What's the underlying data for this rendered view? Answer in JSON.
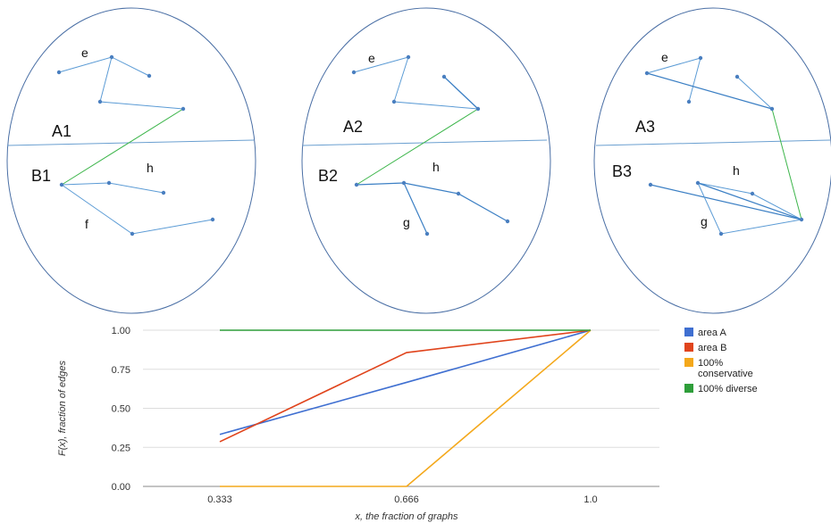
{
  "diagrams": [
    {
      "label_top": "A1",
      "label_bottom": "B1",
      "edge_labels": [
        "e",
        "h",
        "f"
      ]
    },
    {
      "label_top": "A2",
      "label_bottom": "B2",
      "edge_labels": [
        "e",
        "h",
        "g"
      ]
    },
    {
      "label_top": "A3",
      "label_bottom": "B3",
      "edge_labels": [
        "e",
        "h",
        "g"
      ]
    }
  ],
  "colors": {
    "ellipse": "#4a6fa5",
    "edge": "#5b9bd5",
    "cross_edge": "#3cb54a",
    "area_a": "#3f6fd1",
    "area_b": "#e0441c",
    "conservative": "#f4a81b",
    "diverse": "#2e9e3a",
    "grid": "#dddddd"
  },
  "chart_data": {
    "type": "line",
    "x_tick_labels": [
      "0.333",
      "0.666",
      "1.0"
    ],
    "x": [
      0.333,
      0.666,
      1.0
    ],
    "xlabel": "x, the fraction of graphs",
    "ylabel": "F(x), fraction of edges",
    "ylim": [
      0,
      1
    ],
    "y_tick_labels": [
      "1.00",
      "0.75",
      "0.50",
      "0.25",
      "0.00"
    ],
    "grid": true,
    "legend_position": "right",
    "series": [
      {
        "name": "area A",
        "values": [
          0.333,
          0.666,
          1.0
        ],
        "color_key": "area_a"
      },
      {
        "name": "area B",
        "values": [
          0.286,
          0.857,
          1.0
        ],
        "color_key": "area_b"
      },
      {
        "name": "100% conservative",
        "values": [
          0.0,
          0.0,
          1.0
        ],
        "color_key": "conservative"
      },
      {
        "name": "100% diverse",
        "values": [
          1.0,
          1.0,
          1.0
        ],
        "color_key": "diverse"
      }
    ],
    "legend_lines": [
      [
        "area A"
      ],
      [
        "area B"
      ],
      [
        "100%",
        "conservative"
      ],
      [
        "100% diverse"
      ]
    ]
  }
}
